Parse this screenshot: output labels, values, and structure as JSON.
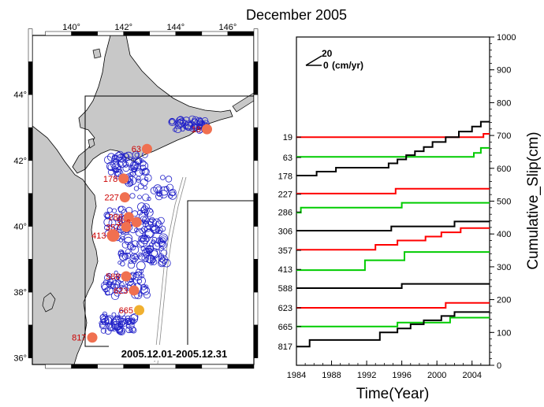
{
  "title": "December 2005",
  "map": {
    "date_range": "2005.12.01-2005.12.31",
    "lon_ticks": [
      "140°",
      "142°",
      "144°",
      "146°"
    ],
    "lat_ticks": [
      "44°",
      "42°",
      "40°",
      "38°",
      "36°"
    ],
    "lon_range": [
      138.5,
      147.0
    ],
    "lat_range": [
      35.8,
      45.8
    ],
    "stations": [
      {
        "label": "19",
        "lon": 145.2,
        "lat": 42.95,
        "color": "#f07050"
      },
      {
        "label": "63",
        "lon": 142.9,
        "lat": 42.35,
        "color": "#f07050"
      },
      {
        "label": "178",
        "lon": 142.0,
        "lat": 41.45,
        "color": "#f07050"
      },
      {
        "label": "227",
        "lon": 142.05,
        "lat": 40.88,
        "color": "#f07050"
      },
      {
        "label": "286",
        "lon": 142.2,
        "lat": 40.28,
        "color": "#f07050"
      },
      {
        "label": "306",
        "lon": 142.5,
        "lat": 40.12,
        "color": "#f07050"
      },
      {
        "label": "357",
        "lon": 142.1,
        "lat": 39.98,
        "color": "#f07050"
      },
      {
        "label": "413",
        "lon": 141.6,
        "lat": 39.72,
        "color": "#f07050"
      },
      {
        "label": "588",
        "lon": 142.1,
        "lat": 38.48,
        "color": "#f07050"
      },
      {
        "label": "623",
        "lon": 142.4,
        "lat": 38.05,
        "color": "#f07050"
      },
      {
        "label": "665",
        "lon": 142.6,
        "lat": 37.45,
        "color": "#f0b030"
      },
      {
        "label": "817",
        "lon": 140.8,
        "lat": 36.62,
        "color": "#f07050"
      }
    ]
  },
  "chart_data": {
    "type": "line",
    "title": "December 2005",
    "xlabel": "Time(Year)",
    "ylabel": "Cumulative_Slip(cm)",
    "xlim": [
      1984,
      2006
    ],
    "ylim": [
      0,
      1000
    ],
    "x_ticks": [
      1984,
      1988,
      1992,
      1996,
      2000,
      2004
    ],
    "y_ticks": [
      0,
      100,
      200,
      300,
      400,
      500,
      600,
      700,
      800,
      900,
      1000
    ],
    "left_labels": [
      {
        "label": "19",
        "y": 695
      },
      {
        "label": "63",
        "y": 633
      },
      {
        "label": "178",
        "y": 577
      },
      {
        "label": "227",
        "y": 521
      },
      {
        "label": "286",
        "y": 467
      },
      {
        "label": "306",
        "y": 409
      },
      {
        "label": "357",
        "y": 350
      },
      {
        "label": "413",
        "y": 292
      },
      {
        "label": "588",
        "y": 235
      },
      {
        "label": "623",
        "y": 175
      },
      {
        "label": "665",
        "y": 118
      },
      {
        "label": "817",
        "y": 57
      }
    ],
    "scale_arrow": {
      "value": "20",
      "base": "0",
      "unit": "(cm/yr)"
    },
    "series": [
      {
        "label": "19",
        "color": "#ff0000",
        "points": [
          [
            1984,
            695
          ],
          [
            2005.3,
            695
          ],
          [
            2005.3,
            705
          ],
          [
            2006,
            705
          ]
        ]
      },
      {
        "label": "63",
        "color": "#00cc00",
        "points": [
          [
            1984,
            635
          ],
          [
            2004.2,
            635
          ],
          [
            2004.2,
            647
          ],
          [
            2005.0,
            647
          ],
          [
            2005.0,
            662
          ],
          [
            2006,
            662
          ]
        ]
      },
      {
        "label": "178",
        "color": "#000000",
        "points": [
          [
            1984,
            578
          ],
          [
            1986.3,
            578
          ],
          [
            1986.3,
            590
          ],
          [
            1988.5,
            590
          ],
          [
            1988.5,
            602
          ],
          [
            1994.5,
            602
          ],
          [
            1994.5,
            615
          ],
          [
            1995.5,
            615
          ],
          [
            1995.5,
            627
          ],
          [
            1996.5,
            627
          ],
          [
            1996.5,
            640
          ],
          [
            1997.5,
            640
          ],
          [
            1997.5,
            652
          ],
          [
            1998.5,
            652
          ],
          [
            1998.5,
            665
          ],
          [
            1999.5,
            665
          ],
          [
            1999.5,
            680
          ],
          [
            2001,
            680
          ],
          [
            2001,
            695
          ],
          [
            2002.5,
            695
          ],
          [
            2002.5,
            712
          ],
          [
            2004,
            712
          ],
          [
            2004,
            727
          ],
          [
            2005,
            727
          ],
          [
            2005,
            742
          ],
          [
            2006,
            742
          ]
        ]
      },
      {
        "label": "227",
        "color": "#ff0000",
        "points": [
          [
            1984,
            523
          ],
          [
            1995.3,
            523
          ],
          [
            1995.3,
            538
          ],
          [
            2006,
            538
          ]
        ]
      },
      {
        "label": "286",
        "color": "#00cc00",
        "points": [
          [
            1984,
            465
          ],
          [
            1984.5,
            465
          ],
          [
            1984.5,
            480
          ],
          [
            1996,
            480
          ],
          [
            1996,
            495
          ],
          [
            2006,
            495
          ]
        ]
      },
      {
        "label": "306",
        "color": "#000000",
        "points": [
          [
            1984,
            410
          ],
          [
            1994.8,
            410
          ],
          [
            1994.8,
            423
          ],
          [
            2002,
            423
          ],
          [
            2002,
            438
          ],
          [
            2006,
            438
          ]
        ]
      },
      {
        "label": "357",
        "color": "#ff0000",
        "points": [
          [
            1984,
            352
          ],
          [
            1993,
            352
          ],
          [
            1993,
            367
          ],
          [
            1995.5,
            367
          ],
          [
            1995.5,
            380
          ],
          [
            1998.7,
            380
          ],
          [
            1998.7,
            392
          ],
          [
            2000.5,
            392
          ],
          [
            2000.5,
            405
          ],
          [
            2002.7,
            405
          ],
          [
            2002.7,
            418
          ],
          [
            2006,
            418
          ]
        ]
      },
      {
        "label": "413",
        "color": "#00cc00",
        "points": [
          [
            1984,
            290
          ],
          [
            1991.8,
            290
          ],
          [
            1991.8,
            320
          ],
          [
            1996.3,
            320
          ],
          [
            1996.3,
            345
          ],
          [
            2006,
            345
          ]
        ]
      },
      {
        "label": "588",
        "color": "#000000",
        "points": [
          [
            1984,
            235
          ],
          [
            1996,
            235
          ],
          [
            1996,
            248
          ],
          [
            2006,
            248
          ]
        ]
      },
      {
        "label": "623",
        "color": "#ff0000",
        "points": [
          [
            1984,
            175
          ],
          [
            2001,
            175
          ],
          [
            2001,
            190
          ],
          [
            2006,
            190
          ]
        ]
      },
      {
        "label": "665",
        "color": "#00cc00",
        "points": [
          [
            1984,
            118
          ],
          [
            1995.5,
            118
          ],
          [
            1995.5,
            130
          ],
          [
            2001.5,
            130
          ],
          [
            2001.5,
            145
          ],
          [
            2006,
            145
          ]
        ]
      },
      {
        "label": "817",
        "color": "#000000",
        "points": [
          [
            1984,
            57
          ],
          [
            1985.5,
            57
          ],
          [
            1985.5,
            77
          ],
          [
            1993.5,
            77
          ],
          [
            1993.5,
            100
          ],
          [
            1995.5,
            100
          ],
          [
            1995.5,
            112
          ],
          [
            1997,
            112
          ],
          [
            1997,
            125
          ],
          [
            1998.5,
            125
          ],
          [
            1998.5,
            137
          ],
          [
            2000.5,
            137
          ],
          [
            2000.5,
            150
          ],
          [
            2002,
            150
          ],
          [
            2002,
            162
          ],
          [
            2006,
            162
          ]
        ]
      }
    ]
  }
}
